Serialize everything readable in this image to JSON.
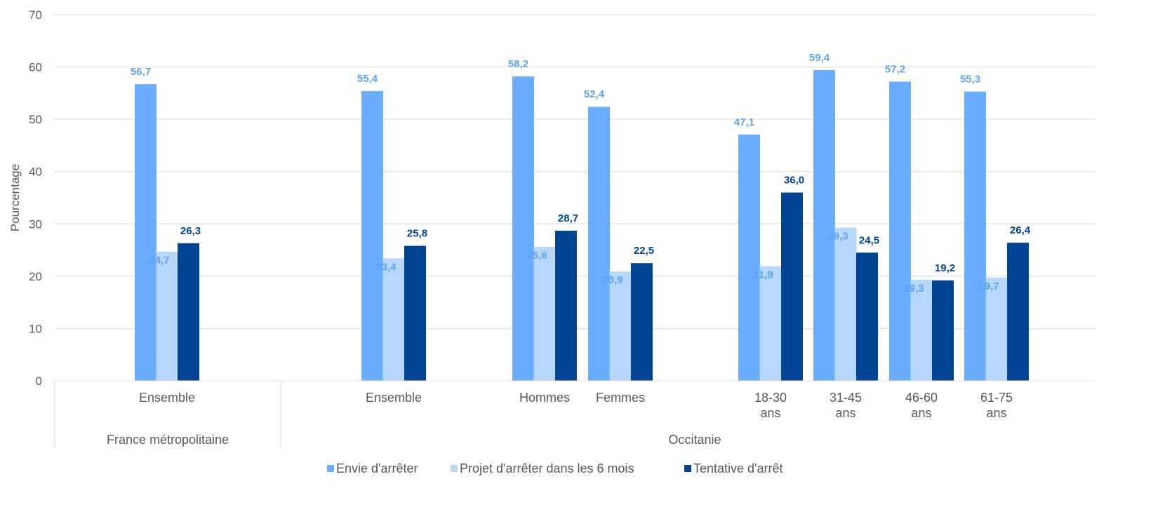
{
  "chart_data": {
    "type": "bar",
    "title": "",
    "ylabel": "Pourcentage",
    "ylim": [
      0,
      70
    ],
    "yticks": [
      "0",
      "10",
      "20",
      "30",
      "40",
      "50",
      "60",
      "70"
    ],
    "groups": [
      {
        "label": "France métropolitaine",
        "categories": [
          "Ensemble"
        ]
      },
      {
        "label": "Occitanie",
        "categories": [
          "Ensemble",
          "Hommes",
          "Femmes",
          "18-30 ans",
          "31-45 ans",
          "46-60 ans",
          "61-75 ans"
        ]
      }
    ],
    "categories": [
      "Ensemble",
      "Ensemble",
      "Hommes",
      "Femmes",
      "18-30 ans",
      "31-45 ans",
      "46-60 ans",
      "61-75 ans"
    ],
    "series": [
      {
        "name": "Envie d'arrêter",
        "color": "#6AADFF",
        "label_color": "#5BA3F5",
        "values": [
          56.7,
          55.4,
          58.2,
          52.4,
          47.1,
          59.4,
          57.2,
          55.3
        ],
        "labels": [
          "56,7",
          "55,4",
          "58,2",
          "52,4",
          "47,1",
          "59,4",
          "57,2",
          "55,3"
        ]
      },
      {
        "name": "Projet d'arrêter dans les 6 mois",
        "color": "#B7D7FC",
        "label_color": "#5BA3F5",
        "values": [
          24.7,
          23.4,
          25.6,
          20.9,
          21.9,
          29.3,
          19.3,
          19.7
        ],
        "labels": [
          "24,7",
          "23,4",
          "25,6",
          "20,9",
          "21,9",
          "29,3",
          "19,3",
          "19,7"
        ]
      },
      {
        "name": "Tentative d'arrêt",
        "color": "#014494",
        "label_color": "#014494",
        "values": [
          26.3,
          25.8,
          28.7,
          22.5,
          36.0,
          24.5,
          19.2,
          26.4
        ],
        "labels": [
          "26,3",
          "25,8",
          "28,7",
          "22,5",
          "36,0",
          "24,5",
          "19,2",
          "26,4"
        ]
      }
    ],
    "grid": true,
    "legend_position": "bottom"
  }
}
